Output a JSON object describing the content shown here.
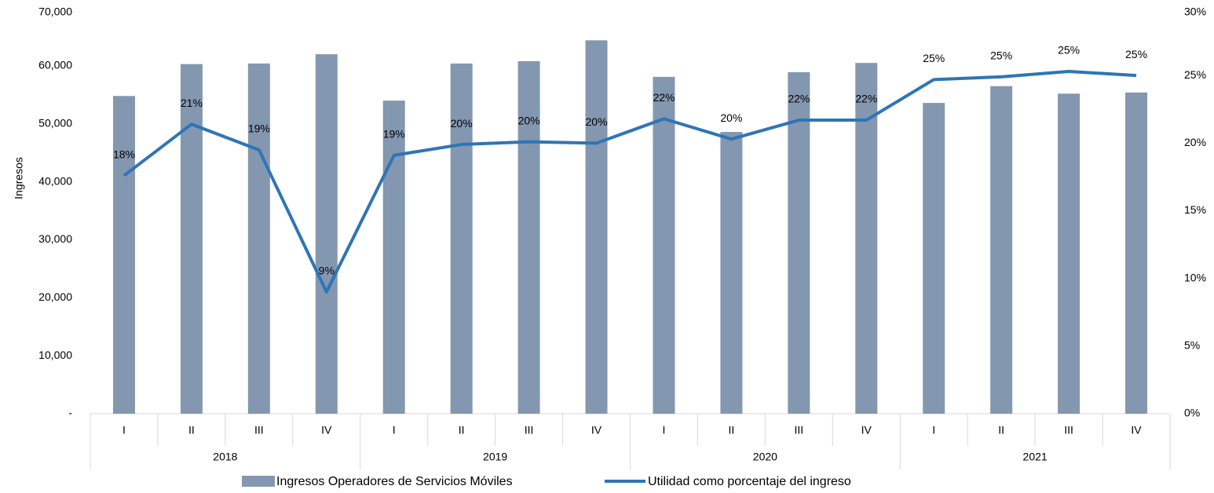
{
  "chart_data": {
    "type": "bar_line",
    "y_label": "Ingresos",
    "categories": [
      "I",
      "II",
      "III",
      "IV",
      "I",
      "II",
      "III",
      "IV",
      "I",
      "II",
      "III",
      "IV",
      "I",
      "II",
      "III",
      "IV"
    ],
    "groups": [
      "2018",
      "2019",
      "2020",
      "2021"
    ],
    "series": [
      {
        "name": "Ingresos Operadores de Servicios Móviles",
        "type": "bar",
        "color": "#8497b0",
        "values": [
          54800,
          60300,
          60400,
          62000,
          54000,
          60400,
          60800,
          64400,
          58100,
          48600,
          58900,
          60500,
          53600,
          56500,
          55200,
          55400
        ]
      },
      {
        "name": "Utilidad como porcentaje del ingreso",
        "type": "line",
        "axis": "y2",
        "color": "#2e75b6",
        "values": [
          17.6,
          21.4,
          19.5,
          9.0,
          19.1,
          19.9,
          20.1,
          20.0,
          21.8,
          20.3,
          21.7,
          21.7,
          24.7,
          24.9,
          25.3,
          25.0
        ],
        "value_labels": [
          "18%",
          "21%",
          "19%",
          "9%",
          "19%",
          "20%",
          "20%",
          "20%",
          "22%",
          "20%",
          "22%",
          "22%",
          "25%",
          "25%",
          "25%",
          "25%"
        ]
      }
    ],
    "ylim": [
      0,
      70000
    ],
    "yticks": [
      {
        "value": 0,
        "label": "-"
      },
      {
        "value": 10000,
        "label": "10,000"
      },
      {
        "value": 20000,
        "label": "20,000"
      },
      {
        "value": 30000,
        "label": "30,000"
      },
      {
        "value": 40000,
        "label": "40,000"
      },
      {
        "value": 50000,
        "label": "50,000"
      },
      {
        "value": 60000,
        "label": "60,000"
      },
      {
        "value": 70000,
        "label": "70,000"
      }
    ],
    "y2lim": [
      0,
      30
    ],
    "y2ticks": [
      {
        "value": 0,
        "label": "0%"
      },
      {
        "value": 5,
        "label": "5%"
      },
      {
        "value": 10,
        "label": "10%"
      },
      {
        "value": 15,
        "label": "15%"
      },
      {
        "value": 20,
        "label": "20%"
      },
      {
        "value": 25,
        "label": "25%"
      },
      {
        "value": 30,
        "label": "30%"
      }
    ],
    "legend": "bottom"
  }
}
